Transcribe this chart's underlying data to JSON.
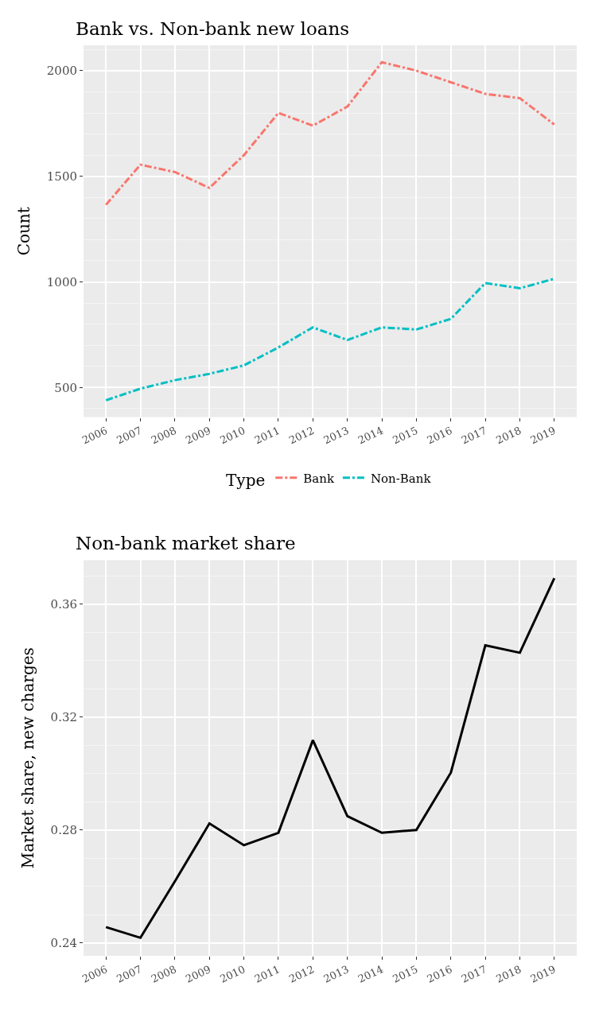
{
  "chart_data": [
    {
      "type": "line",
      "title": "Bank vs. Non-bank new loans",
      "ylabel": "Count",
      "legend_title": "Type",
      "legend": "bottom",
      "grid": true,
      "line_style": "dashed",
      "x": [
        2006,
        2007,
        2008,
        2009,
        2010,
        2011,
        2012,
        2013,
        2014,
        2015,
        2016,
        2017,
        2018,
        2019
      ],
      "series": [
        {
          "name": "Bank",
          "color": "#f8766d",
          "values": [
            1365,
            1555,
            1520,
            1445,
            1600,
            1800,
            1740,
            1830,
            2040,
            2000,
            1945,
            1890,
            1870,
            1745
          ]
        },
        {
          "name": "Non-Bank",
          "color": "#00bfc4",
          "values": [
            440,
            495,
            535,
            565,
            605,
            690,
            785,
            725,
            785,
            775,
            825,
            995,
            970,
            1015
          ]
        }
      ],
      "xlim": [
        2005.35,
        2019.65
      ],
      "xticks": [
        2006,
        2007,
        2008,
        2009,
        2010,
        2011,
        2012,
        2013,
        2014,
        2015,
        2016,
        2017,
        2018,
        2019
      ],
      "ylim": [
        360,
        2120
      ],
      "yticks": [
        500,
        1000,
        1500,
        2000
      ]
    },
    {
      "type": "line",
      "title": "Non-bank market share",
      "ylabel": "Market share, new charges",
      "grid": true,
      "line_style": "solid",
      "x": [
        2006,
        2007,
        2008,
        2009,
        2010,
        2011,
        2012,
        2013,
        2014,
        2015,
        2016,
        2017,
        2018,
        2019
      ],
      "series": [
        {
          "color": "#000000",
          "values": [
            0.2456,
            0.2418,
            0.2618,
            0.2823,
            0.2746,
            0.279,
            0.3118,
            0.2849,
            0.279,
            0.28,
            0.3003,
            0.3454,
            0.3428,
            0.3692
          ]
        }
      ],
      "xlim": [
        2005.35,
        2019.65
      ],
      "xticks": [
        2006,
        2007,
        2008,
        2009,
        2010,
        2011,
        2012,
        2013,
        2014,
        2015,
        2016,
        2017,
        2018,
        2019
      ],
      "ylim": [
        0.2354,
        0.3756
      ],
      "yticks": [
        {
          "value": 0.24,
          "label": "0.24"
        },
        {
          "value": 0.28,
          "label": "0.28"
        },
        {
          "value": 0.32,
          "label": "0.32"
        },
        {
          "value": 0.36,
          "label": "0.36"
        }
      ]
    }
  ]
}
